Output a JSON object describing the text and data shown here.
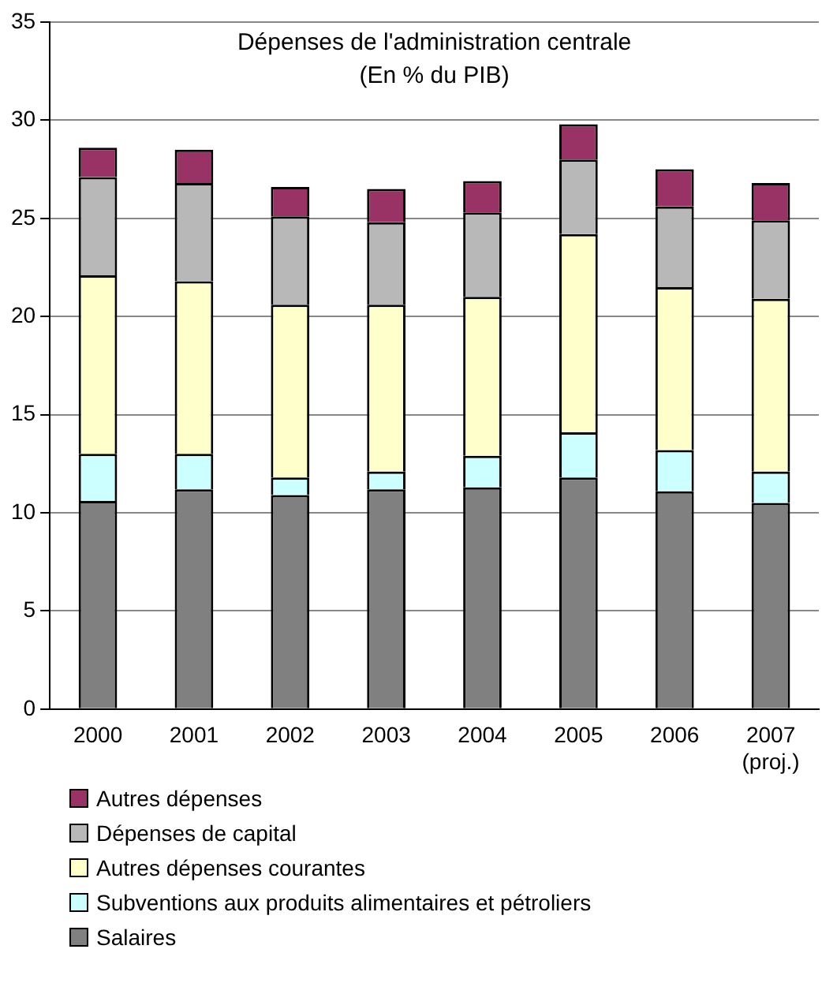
{
  "chart_data": {
    "type": "bar",
    "title": "Dépenses de l'administration centrale",
    "subtitle": "(En % du PIB)",
    "categories": [
      "2000",
      "2001",
      "2002",
      "2003",
      "2004",
      "2005",
      "2006",
      "2007 (proj.)"
    ],
    "stacked": true,
    "series": [
      {
        "name": "Salaires",
        "color": "#808080",
        "values": [
          10.6,
          11.2,
          10.9,
          11.2,
          11.3,
          11.8,
          11.1,
          10.5
        ]
      },
      {
        "name": "Subventions aux produits alimentaires et pétroliers",
        "color": "#ccffff",
        "values": [
          2.4,
          1.8,
          0.9,
          0.9,
          1.6,
          2.3,
          2.1,
          1.6
        ]
      },
      {
        "name": "Autres dépenses courantes",
        "color": "#ffffcc",
        "values": [
          9.1,
          8.8,
          8.8,
          8.5,
          8.1,
          10.1,
          8.3,
          8.8
        ]
      },
      {
        "name": "Dépenses de capital",
        "color": "#b8b8b8",
        "values": [
          5.0,
          5.0,
          4.5,
          4.2,
          4.3,
          3.8,
          4.1,
          4.0
        ]
      },
      {
        "name": "Autres dépenses",
        "color": "#993366",
        "values": [
          1.5,
          1.7,
          1.5,
          1.7,
          1.6,
          1.8,
          1.9,
          1.9
        ]
      }
    ],
    "ylim": [
      0,
      35
    ],
    "yticks": [
      0,
      5,
      10,
      15,
      20,
      25,
      30,
      35
    ],
    "grid": "y",
    "legend": "bottom"
  }
}
